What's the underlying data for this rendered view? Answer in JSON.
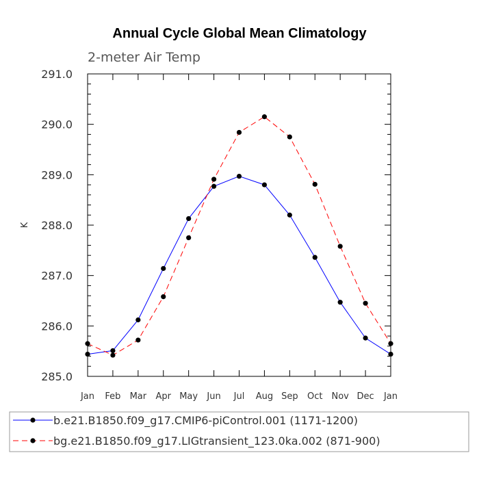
{
  "chart_data": {
    "type": "line",
    "title": "Annual Cycle Global Mean Climatology",
    "subtitle": "2-meter Air Temp",
    "xlabel": "",
    "ylabel": "K",
    "categories": [
      "Jan",
      "Feb",
      "Mar",
      "Apr",
      "May",
      "Jun",
      "Jul",
      "Aug",
      "Sep",
      "Oct",
      "Nov",
      "Dec",
      "Jan"
    ],
    "ylim": [
      285.0,
      291.0
    ],
    "yticks": [
      "285.0",
      "286.0",
      "287.0",
      "288.0",
      "289.0",
      "290.0",
      "291.0"
    ],
    "grid": false,
    "legend_position": "bottom",
    "series": [
      {
        "name": "b.e21.B1850.f09_g17.CMIP6-piControl.001 (1171-1200)",
        "color": "#0000ff",
        "style": "solid",
        "values": [
          285.44,
          285.51,
          286.12,
          287.14,
          288.13,
          288.77,
          288.97,
          288.8,
          288.2,
          287.36,
          286.47,
          285.76,
          285.44
        ]
      },
      {
        "name": "bg.e21.B1850.f09_g17.LIGtransient_123.0ka.002 (871-900)",
        "color": "#ff0000",
        "style": "dashed",
        "values": [
          285.65,
          285.42,
          285.72,
          286.58,
          287.75,
          288.91,
          289.84,
          290.15,
          289.75,
          288.81,
          287.58,
          286.45,
          285.65
        ]
      }
    ]
  }
}
